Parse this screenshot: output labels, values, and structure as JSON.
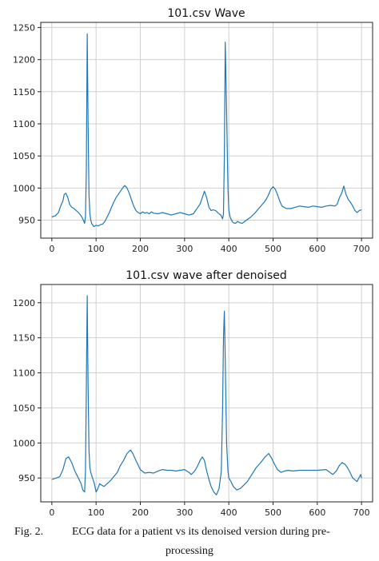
{
  "chart_data": [
    {
      "type": "line",
      "title": "101.csv Wave",
      "xlabel": "",
      "ylabel": "",
      "xlim": [
        -25,
        725
      ],
      "ylim": [
        922,
        1258
      ],
      "xticks": [
        0,
        100,
        200,
        300,
        400,
        500,
        600,
        700
      ],
      "yticks": [
        950,
        1000,
        1050,
        1100,
        1150,
        1200,
        1250
      ],
      "grid": true,
      "color": "#1f77b4",
      "series": [
        {
          "x": [
            0,
            8,
            15,
            20,
            25,
            28,
            32,
            36,
            40,
            45,
            50,
            55,
            60,
            65,
            70,
            74,
            76,
            78,
            80,
            82,
            84,
            86,
            88,
            90,
            95,
            100,
            105,
            110,
            115,
            120,
            125,
            130,
            135,
            140,
            145,
            150,
            155,
            160,
            165,
            170,
            175,
            180,
            185,
            190,
            195,
            200,
            205,
            210,
            215,
            220,
            225,
            230,
            240,
            250,
            260,
            270,
            280,
            290,
            300,
            310,
            320,
            325,
            330,
            335,
            340,
            345,
            350,
            355,
            360,
            365,
            370,
            375,
            378,
            382,
            386,
            388,
            390,
            392,
            395,
            398,
            400,
            403,
            406,
            410,
            415,
            420,
            425,
            430,
            440,
            450,
            460,
            470,
            480,
            485,
            490,
            495,
            500,
            505,
            510,
            515,
            520,
            530,
            540,
            550,
            560,
            570,
            580,
            590,
            600,
            610,
            620,
            630,
            640,
            645,
            650,
            655,
            660,
            665,
            670,
            675,
            680,
            685,
            690,
            695,
            700
          ],
          "y": [
            955,
            957,
            962,
            972,
            980,
            990,
            992,
            985,
            975,
            970,
            968,
            965,
            962,
            958,
            952,
            945,
            955,
            1030,
            1240,
            1100,
            990,
            960,
            950,
            945,
            940,
            942,
            941,
            943,
            944,
            948,
            955,
            962,
            970,
            978,
            985,
            990,
            995,
            1000,
            1004,
            1000,
            992,
            982,
            972,
            965,
            962,
            960,
            963,
            961,
            962,
            960,
            963,
            961,
            960,
            962,
            960,
            958,
            960,
            962,
            960,
            958,
            960,
            965,
            970,
            975,
            985,
            995,
            985,
            970,
            965,
            966,
            965,
            962,
            960,
            958,
            952,
            960,
            1050,
            1227,
            1120,
            1000,
            965,
            955,
            950,
            946,
            945,
            948,
            946,
            945,
            950,
            955,
            962,
            970,
            978,
            983,
            990,
            998,
            1002,
            998,
            990,
            980,
            972,
            968,
            968,
            970,
            972,
            971,
            970,
            972,
            971,
            970,
            972,
            973,
            972,
            975,
            985,
            992,
            1003,
            990,
            982,
            978,
            972,
            965,
            962,
            965,
            966
          ]
        }
      ]
    },
    {
      "type": "line",
      "title": "101.csv wave after denoised",
      "xlabel": "",
      "ylabel": "",
      "xlim": [
        -25,
        725
      ],
      "ylim": [
        916,
        1226
      ],
      "xticks": [
        0,
        100,
        200,
        300,
        400,
        500,
        600,
        700
      ],
      "yticks": [
        950,
        1000,
        1050,
        1100,
        1150,
        1200
      ],
      "grid": true,
      "color": "#1f77b4",
      "series": [
        {
          "x": [
            0,
            10,
            18,
            25,
            32,
            38,
            45,
            52,
            60,
            66,
            70,
            74,
            76,
            78,
            80,
            82,
            84,
            86,
            88,
            92,
            96,
            100,
            104,
            108,
            112,
            118,
            125,
            132,
            140,
            148,
            155,
            162,
            170,
            178,
            183,
            190,
            200,
            210,
            220,
            230,
            240,
            250,
            260,
            270,
            280,
            290,
            300,
            310,
            315,
            320,
            325,
            330,
            335,
            340,
            345,
            350,
            355,
            360,
            366,
            372,
            378,
            383,
            386,
            388,
            390,
            392,
            395,
            398,
            400,
            405,
            410,
            418,
            426,
            434,
            442,
            452,
            462,
            472,
            482,
            490,
            497,
            503,
            510,
            518,
            526,
            534,
            545,
            560,
            580,
            600,
            620,
            635,
            643,
            650,
            656,
            662,
            668,
            674,
            680,
            686,
            690,
            694,
            698,
            700
          ],
          "y": [
            948,
            950,
            952,
            962,
            978,
            980,
            972,
            960,
            950,
            942,
            933,
            930,
            960,
            1080,
            1210,
            1080,
            990,
            965,
            958,
            950,
            942,
            930,
            935,
            942,
            940,
            938,
            942,
            946,
            952,
            958,
            968,
            975,
            985,
            990,
            985,
            975,
            962,
            957,
            958,
            957,
            960,
            962,
            961,
            961,
            960,
            961,
            962,
            958,
            955,
            958,
            962,
            968,
            975,
            980,
            975,
            960,
            948,
            938,
            930,
            926,
            935,
            960,
            1050,
            1150,
            1188,
            1120,
            1000,
            960,
            950,
            945,
            938,
            933,
            935,
            940,
            945,
            955,
            965,
            972,
            980,
            985,
            978,
            970,
            962,
            958,
            960,
            961,
            960,
            961,
            961,
            961,
            962,
            955,
            960,
            968,
            972,
            970,
            965,
            958,
            950,
            947,
            945,
            950,
            955,
            950
          ]
        }
      ]
    }
  ],
  "caption": {
    "fig_label": "Fig. 2.",
    "line1": "ECG data for a patient vs its denoised version during pre-",
    "line2": "processing"
  }
}
